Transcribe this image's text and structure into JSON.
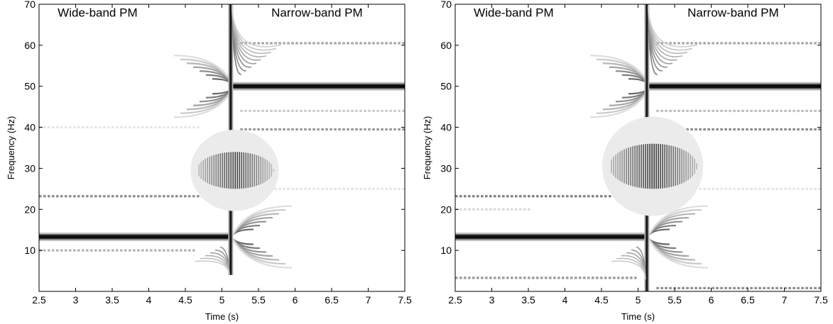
{
  "chart_data": [
    {
      "type": "heatmap",
      "title": "",
      "xlabel": "Time (s)",
      "ylabel": "Frequency (Hz)",
      "xlim": [
        2.5,
        7.5
      ],
      "ylim": [
        0,
        70
      ],
      "xticks": [
        2.5,
        3,
        3.5,
        4,
        4.5,
        5,
        5.5,
        6,
        6.5,
        7,
        7.5
      ],
      "xtick_labels": [
        "2.5",
        "3",
        "3.5",
        "4",
        "4.5",
        "5",
        "5.5",
        "6",
        "6.5",
        "7",
        "7.5"
      ],
      "yticks": [
        10,
        20,
        30,
        40,
        50,
        60,
        70
      ],
      "ytick_labels": [
        "10",
        "20",
        "30",
        "40",
        "50",
        "60",
        "70"
      ],
      "grid": false,
      "colormap": "grayscale (white = low, black = high)",
      "annotations": [
        {
          "text": "Wide-band PM",
          "x": 3.3,
          "y": 67
        },
        {
          "text": "Narrow-band PM",
          "x": 6.3,
          "y": 67
        }
      ],
      "components": [
        {
          "kind": "ridge",
          "t_start": 2.5,
          "t_end": 5.15,
          "f": 13.3,
          "intensity": 0.95
        },
        {
          "kind": "ridge",
          "t_start": 2.5,
          "t_end": 4.6,
          "f": 10,
          "intensity": 0.3,
          "dotted": true
        },
        {
          "kind": "ridge",
          "t_start": 2.5,
          "t_end": 5.05,
          "f": 23.2,
          "intensity": 0.45,
          "dotted": true
        },
        {
          "kind": "ridge",
          "t_start": 2.5,
          "t_end": 4.7,
          "f": 40,
          "intensity": 0.1,
          "dotted": true
        },
        {
          "kind": "ridge",
          "t_start": 5.15,
          "t_end": 7.5,
          "f": 50,
          "intensity": 0.95
        },
        {
          "kind": "ridge",
          "t_start": 5.25,
          "t_end": 7.5,
          "f": 60.5,
          "intensity": 0.35,
          "dotted": true
        },
        {
          "kind": "ridge",
          "t_start": 5.25,
          "t_end": 7.5,
          "f": 44,
          "intensity": 0.2,
          "dotted": true
        },
        {
          "kind": "ridge",
          "t_start": 5.25,
          "t_end": 7.5,
          "f": 39.5,
          "intensity": 0.4,
          "dotted": true
        },
        {
          "kind": "ridge",
          "t_start": 5.6,
          "t_end": 7.5,
          "f": 25,
          "intensity": 0.1,
          "dotted": true
        },
        {
          "kind": "transition",
          "t": 5.12,
          "f_range": [
            4,
            70
          ],
          "intensity": 0.9
        },
        {
          "kind": "blob",
          "t_range": [
            4.65,
            5.7
          ],
          "f_range": [
            25,
            34
          ],
          "intensity": 0.75
        }
      ]
    },
    {
      "type": "heatmap",
      "title": "",
      "xlabel": "Time (s)",
      "ylabel": "Frequency (Hz)",
      "xlim": [
        2.5,
        7.5
      ],
      "ylim": [
        0,
        70
      ],
      "xticks": [
        2.5,
        3,
        3.5,
        4,
        4.5,
        5,
        5.5,
        6,
        6.5,
        7,
        7.5
      ],
      "xtick_labels": [
        "2.5",
        "3",
        "3.5",
        "4",
        "4.5",
        "5",
        "5.5",
        "6",
        "6.5",
        "7",
        "7.5"
      ],
      "yticks": [
        10,
        20,
        30,
        40,
        50,
        60,
        70
      ],
      "ytick_labels": [
        "10",
        "20",
        "30",
        "40",
        "50",
        "60",
        "70"
      ],
      "grid": false,
      "colormap": "grayscale (white = low, black = high)",
      "annotations": [
        {
          "text": "Wide-band PM",
          "x": 3.3,
          "y": 67
        },
        {
          "text": "Narrow-band PM",
          "x": 6.3,
          "y": 67
        }
      ],
      "components": [
        {
          "kind": "ridge",
          "t_start": 2.5,
          "t_end": 5.15,
          "f": 13.3,
          "intensity": 0.95
        },
        {
          "kind": "ridge",
          "t_start": 2.5,
          "t_end": 5.0,
          "f": 3.3,
          "intensity": 0.4,
          "dotted": true
        },
        {
          "kind": "ridge",
          "t_start": 2.5,
          "t_end": 5.05,
          "f": 23.2,
          "intensity": 0.5,
          "dotted": true
        },
        {
          "kind": "ridge",
          "t_start": 2.5,
          "t_end": 3.5,
          "f": 20,
          "intensity": 0.15,
          "dotted": true
        },
        {
          "kind": "ridge",
          "t_start": 5.15,
          "t_end": 7.5,
          "f": 50,
          "intensity": 0.95
        },
        {
          "kind": "ridge",
          "t_start": 5.25,
          "t_end": 7.5,
          "f": 60.5,
          "intensity": 0.35,
          "dotted": true
        },
        {
          "kind": "ridge",
          "t_start": 5.25,
          "t_end": 7.5,
          "f": 44,
          "intensity": 0.25,
          "dotted": true
        },
        {
          "kind": "ridge",
          "t_start": 5.25,
          "t_end": 7.5,
          "f": 39.5,
          "intensity": 0.45,
          "dotted": true
        },
        {
          "kind": "ridge",
          "t_start": 5.25,
          "t_end": 7.5,
          "f": 0.8,
          "intensity": 0.45,
          "dotted": true
        },
        {
          "kind": "ridge",
          "t_start": 5.6,
          "t_end": 7.5,
          "f": 25,
          "intensity": 0.1,
          "dotted": true
        },
        {
          "kind": "transition",
          "t": 5.12,
          "f_range": [
            0,
            70
          ],
          "intensity": 0.9
        },
        {
          "kind": "blob",
          "t_range": [
            4.6,
            5.8
          ],
          "f_range": [
            25,
            36
          ],
          "intensity": 0.8
        }
      ]
    }
  ]
}
